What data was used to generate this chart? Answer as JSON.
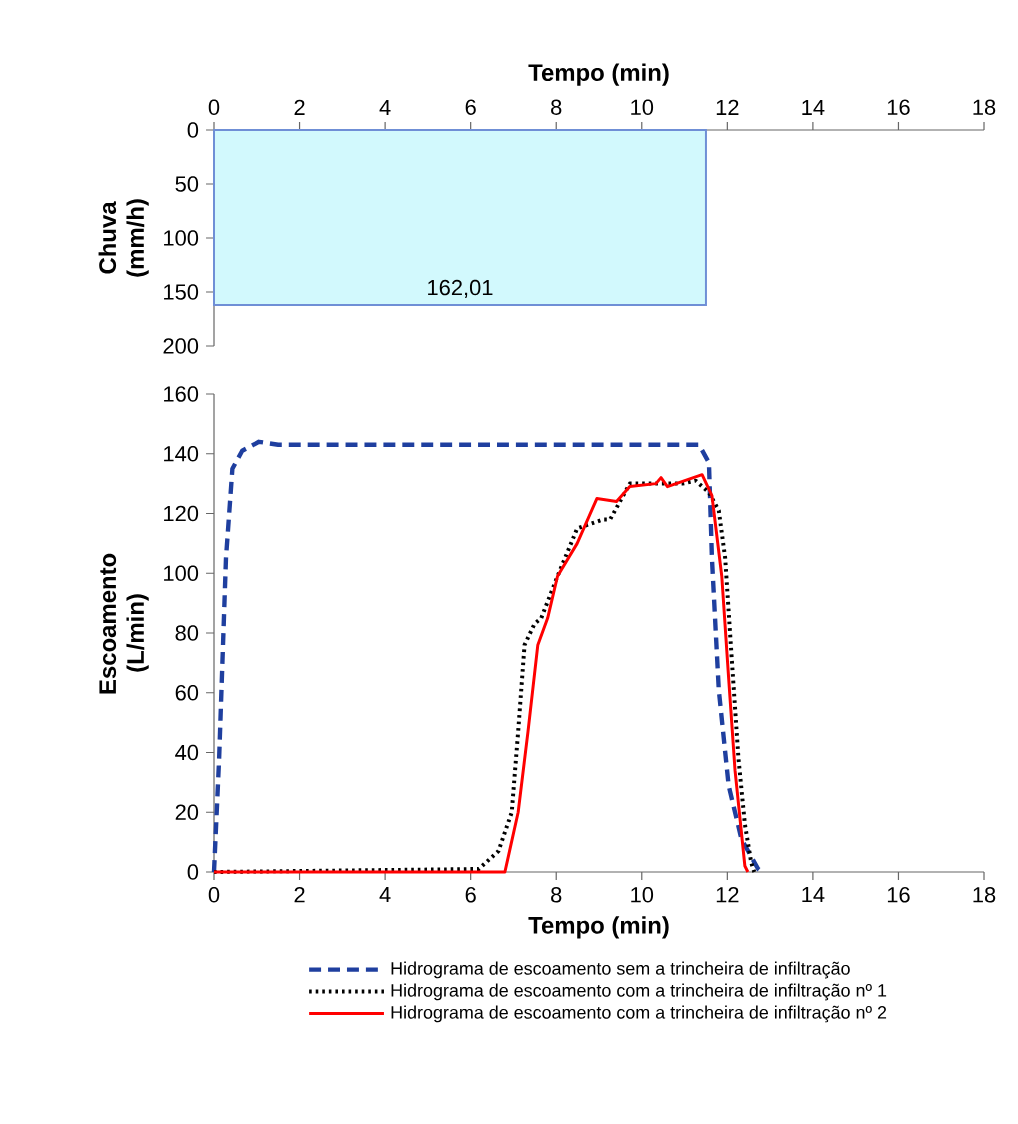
{
  "chart_data": [
    {
      "type": "area",
      "xlabel": "Tempo (min)",
      "ylabel": "Chuva (mm/h)",
      "xlim": [
        0,
        18
      ],
      "xticks": [
        0,
        2,
        4,
        6,
        8,
        10,
        12,
        14,
        16,
        18
      ],
      "ylim": [
        200,
        0
      ],
      "yticks": [
        0,
        50,
        100,
        150,
        200
      ],
      "series": [
        {
          "x": [
            0,
            11.5
          ],
          "values": [
            162.01,
            162.01
          ],
          "color": "#6f8fd6"
        }
      ],
      "annotations": [
        {
          "text": "162,01",
          "x": 5.75,
          "y": 162.01
        }
      ]
    },
    {
      "type": "line",
      "xlabel": "Tempo (min)",
      "ylabel": "Escoamento (L/min)",
      "xlim": [
        0,
        18
      ],
      "xticks": [
        0,
        2,
        4,
        6,
        8,
        10,
        12,
        14,
        16,
        18
      ],
      "ylim": [
        0,
        160
      ],
      "yticks": [
        0,
        20,
        40,
        60,
        80,
        100,
        120,
        140,
        160
      ],
      "legend": "bottom",
      "marker": "none",
      "series": [
        {
          "name": "Hidrograma de escoamento sem a trincheira de infiltração",
          "color": "#1f3f9f",
          "line_style": "dashed",
          "x": [
            0,
            0.12,
            0.28,
            0.43,
            0.66,
            1.05,
            1.5,
            11.34,
            11.57,
            11.64,
            11.8,
            12.03,
            12.33,
            12.72,
            12.8
          ],
          "values": [
            0,
            38,
            105,
            135,
            141,
            144,
            143,
            143,
            137,
            105,
            61,
            29,
            11,
            1,
            0
          ]
        },
        {
          "name": "Hidrograma de escoamento com a trincheira de infiltração nº 1",
          "color": "#000000",
          "line_style": "dotted",
          "x": [
            0,
            6.19,
            6.65,
            6.96,
            7.11,
            7.26,
            7.49,
            7.65,
            8.03,
            8.49,
            9.1,
            9.26,
            9.72,
            10.33,
            10.95,
            11.26,
            11.57,
            11.8,
            11.95,
            12.1,
            12.26,
            12.41,
            12.56,
            12.63
          ],
          "values": [
            0,
            1,
            7,
            20,
            47,
            76,
            83,
            85,
            99,
            115,
            118,
            118,
            130,
            130,
            130,
            131,
            127,
            121,
            105,
            72,
            38,
            16,
            3,
            0
          ]
        },
        {
          "name": "Hidrograma de escoamento com a trincheira de infiltração nº 2",
          "color": "#ff0000",
          "line_style": "solid",
          "x": [
            0,
            6.8,
            7.11,
            7.34,
            7.57,
            7.8,
            8.03,
            8.49,
            8.95,
            9.41,
            9.72,
            10.33,
            10.45,
            10.6,
            11.41,
            11.64,
            11.87,
            12.03,
            12.18,
            12.41,
            12.48
          ],
          "values": [
            0,
            0,
            20,
            47,
            76,
            85,
            99,
            110,
            125,
            124,
            129,
            130,
            132,
            129,
            133,
            126,
            99,
            65,
            34,
            2,
            0
          ]
        }
      ]
    }
  ]
}
